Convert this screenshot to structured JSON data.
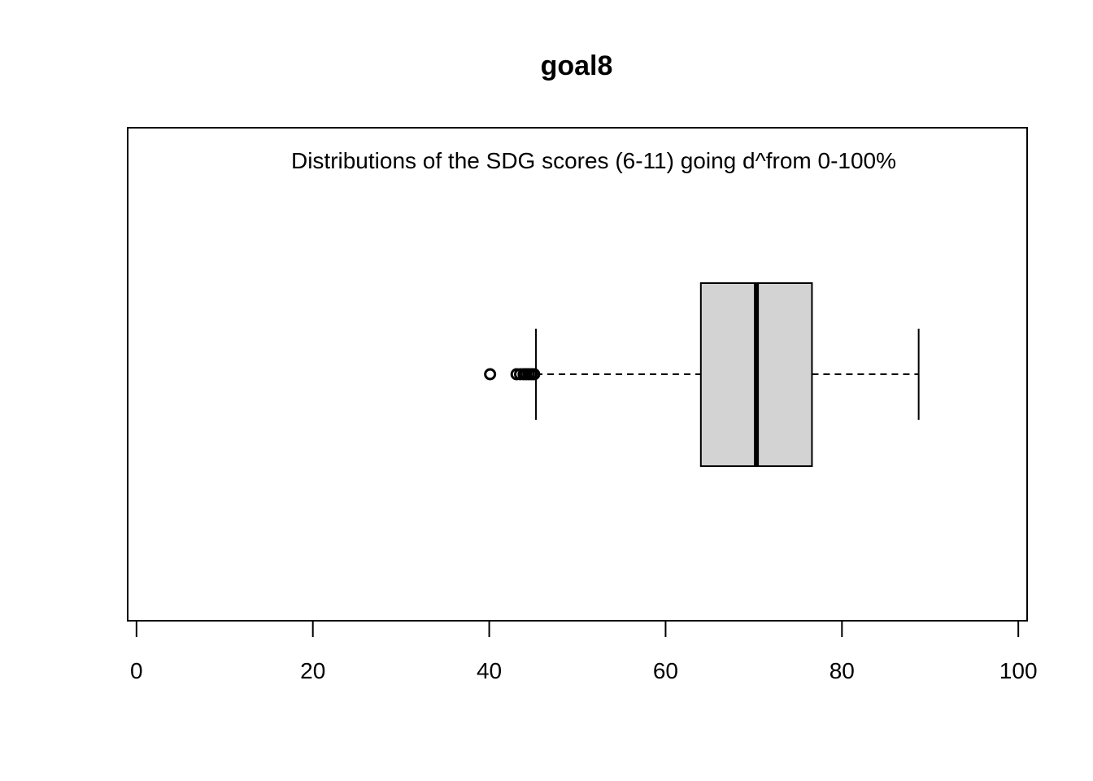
{
  "chart_data": {
    "type": "boxplot",
    "orientation": "horizontal",
    "title": "goal8",
    "annotation": "Distributions of the SDG scores (6-11) going d^from 0-100%",
    "xlim": [
      -1,
      101
    ],
    "ticks": [
      0,
      20,
      40,
      60,
      80,
      100
    ],
    "tick_labels": [
      "0",
      "20",
      "40",
      "60",
      "80",
      "100"
    ],
    "box": {
      "lower_whisker": 45.3,
      "q1": 64.0,
      "median": 70.3,
      "q3": 76.6,
      "upper_whisker": 88.7
    },
    "outliers": [
      40.1,
      43.1,
      43.5,
      43.9,
      44.2,
      44.5,
      44.8,
      45.1
    ],
    "fill_color": "#d3d3d3",
    "line_color": "#000000"
  }
}
